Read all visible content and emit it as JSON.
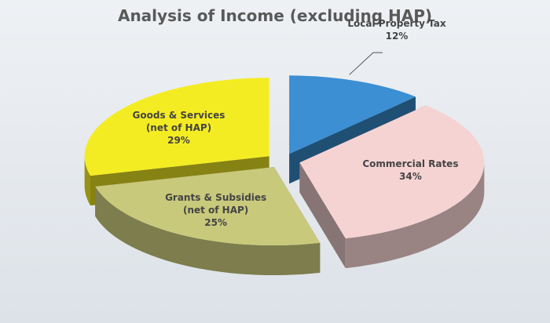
{
  "chart_data": {
    "type": "pie",
    "title": "Analysis of Income (excluding HAP)",
    "categories": [
      "Local Property Tax",
      "Commercial Rates",
      "Grants & Subsidies (net of HAP)",
      "Goods & Services (net of HAP)"
    ],
    "values": [
      12,
      34,
      25,
      29
    ],
    "value_labels": [
      "12%",
      "34%",
      "25%",
      "29%"
    ],
    "colors": [
      "#3b8fd2",
      "#f6d3d3",
      "#c9c97c",
      "#f4ec22"
    ]
  }
}
